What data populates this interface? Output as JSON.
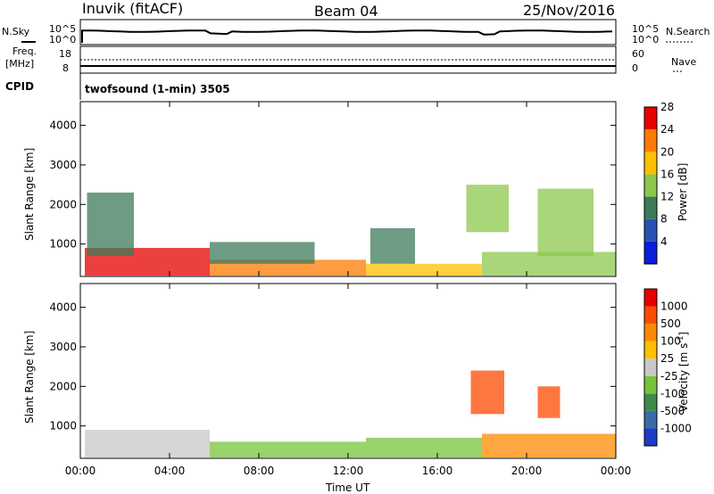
{
  "header": {
    "station": "Inuvik (fitACF)",
    "beam": "Beam 04",
    "date": "25/Nov/2016"
  },
  "summary": {
    "nsky_label": "N.Sky",
    "nsearch_label": "N.Search",
    "freq_label_1": "Freq.",
    "freq_label_2": "[MHz]",
    "nave_label": "Nave",
    "cpid_label": "CPID",
    "noise_ticks_left": [
      "10^5",
      "10^0"
    ],
    "noise_ticks_right": [
      "10^5",
      "10^0"
    ],
    "freq_ticks": [
      "18",
      "8"
    ],
    "nave_ticks": [
      "60",
      "0"
    ],
    "cpid_text": "twofsound (1-min) 3505"
  },
  "chart_data": [
    {
      "type": "heatmap",
      "panel": "power",
      "ylabel": "Slant Range [km]",
      "xlabel": "",
      "colorbar_label": "Power [dB]",
      "colorbar_ticks": [
        "4",
        "8",
        "12",
        "16",
        "20",
        "24",
        "28"
      ],
      "colorbar_colors": [
        "#0a1edc",
        "#2a52b4",
        "#3d7a5a",
        "#8cc84c",
        "#ffc000",
        "#ff7a00",
        "#e60000"
      ],
      "yticks": [
        "1000",
        "2000",
        "3000",
        "4000"
      ],
      "ylim": [
        180,
        4600
      ],
      "xticks": [
        "00:00",
        "04:00",
        "08:00",
        "12:00",
        "16:00",
        "20:00",
        "00:00"
      ],
      "xlim_hours": [
        0,
        24
      ],
      "regions": [
        {
          "t0": 0.2,
          "t1": 5.8,
          "r0": 200,
          "r1": 900,
          "level": 6
        },
        {
          "t0": 5.8,
          "t1": 12.8,
          "r0": 200,
          "r1": 600,
          "level": 5
        },
        {
          "t0": 12.8,
          "t1": 18.0,
          "r0": 200,
          "r1": 500,
          "level": 4
        },
        {
          "t0": 18.0,
          "t1": 24.0,
          "r0": 200,
          "r1": 800,
          "level": 3
        },
        {
          "t0": 0.3,
          "t1": 2.4,
          "r0": 700,
          "r1": 2300,
          "level": 2
        },
        {
          "t0": 5.8,
          "t1": 10.5,
          "r0": 500,
          "r1": 1050,
          "level": 2
        },
        {
          "t0": 13.0,
          "t1": 15.0,
          "r0": 500,
          "r1": 1400,
          "level": 2
        },
        {
          "t0": 17.3,
          "t1": 19.2,
          "r0": 1300,
          "r1": 2500,
          "level": 3
        },
        {
          "t0": 20.5,
          "t1": 23.0,
          "r0": 700,
          "r1": 2400,
          "level": 3
        }
      ]
    },
    {
      "type": "heatmap",
      "panel": "velocity",
      "ylabel": "Slant Range [km]",
      "xlabel": "Time UT",
      "colorbar_label": "Velocity [m s^-1]",
      "colorbar_ticks": [
        "1000",
        "500",
        "100",
        "25",
        "-25",
        "-100",
        "-500",
        "-1000"
      ],
      "colorbar_colors": [
        "#1c3cc8",
        "#3a6aa8",
        "#3d8a4c",
        "#76c43c",
        "#c8c8c8",
        "#ffc000",
        "#ff8a00",
        "#ff4a00",
        "#e60000"
      ],
      "yticks": [
        "1000",
        "2000",
        "3000",
        "4000"
      ],
      "ylim": [
        180,
        4600
      ],
      "xticks": [
        "00:00",
        "04:00",
        "08:00",
        "12:00",
        "16:00",
        "20:00",
        "00:00"
      ],
      "xlim_hours": [
        0,
        24
      ],
      "regions": [
        {
          "t0": 0.2,
          "t1": 5.8,
          "r0": 200,
          "r1": 900,
          "level": 4
        },
        {
          "t0": 5.8,
          "t1": 12.8,
          "r0": 200,
          "r1": 600,
          "level": 3
        },
        {
          "t0": 12.8,
          "t1": 18.0,
          "r0": 200,
          "r1": 700,
          "level": 3
        },
        {
          "t0": 18.0,
          "t1": 24.0,
          "r0": 200,
          "r1": 800,
          "level": 6
        },
        {
          "t0": 17.5,
          "t1": 19.0,
          "r0": 1300,
          "r1": 2400,
          "level": 7
        },
        {
          "t0": 20.5,
          "t1": 21.5,
          "r0": 1200,
          "r1": 2000,
          "level": 7
        }
      ]
    }
  ]
}
